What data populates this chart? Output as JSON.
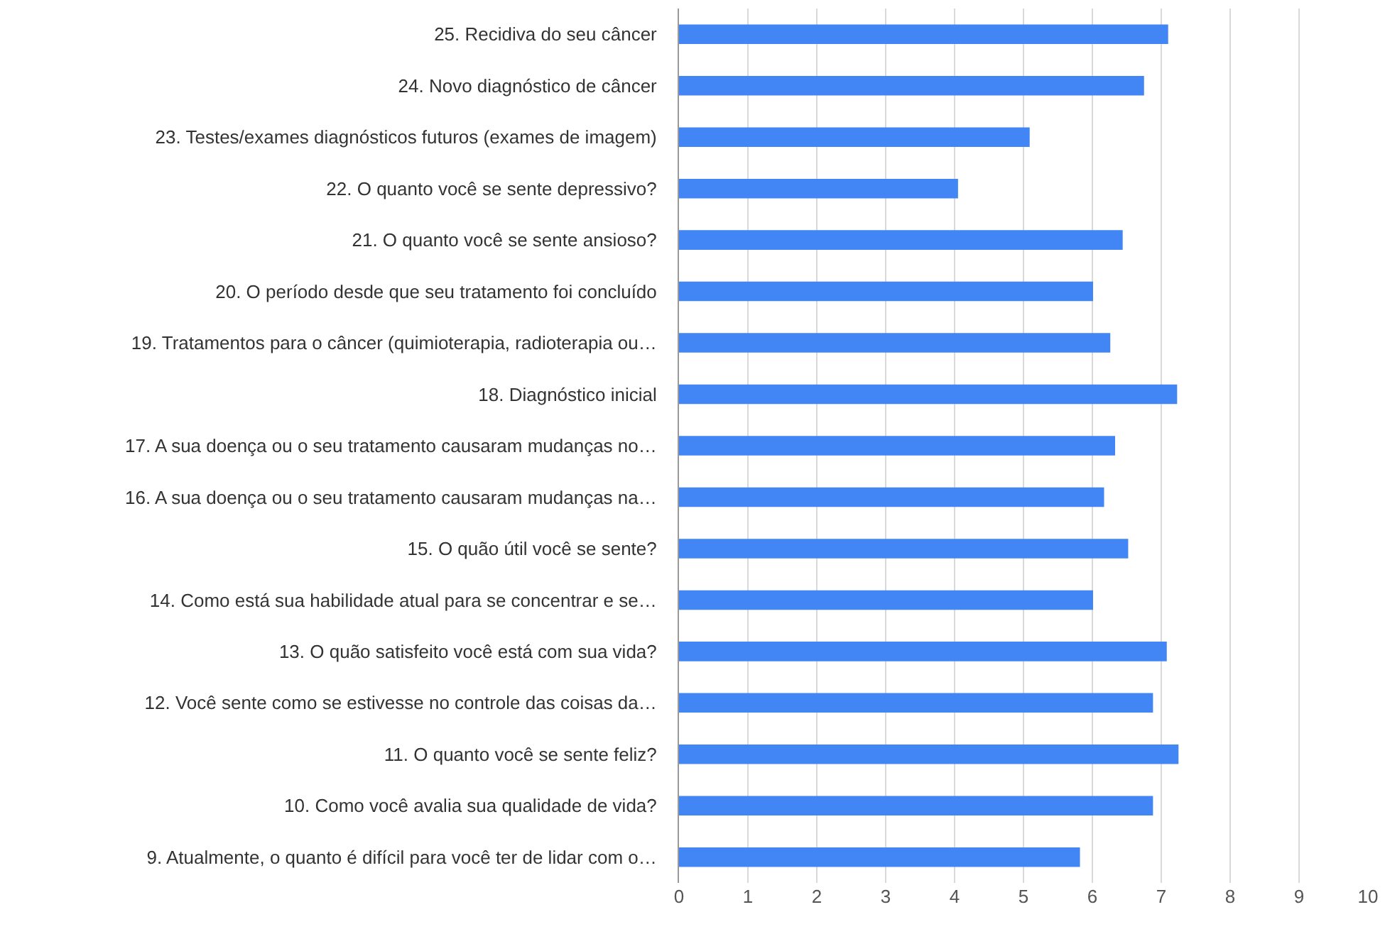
{
  "chart_data": {
    "type": "bar",
    "orientation": "horizontal",
    "categories": [
      "25. Recidiva do seu câncer",
      "24. Novo diagnóstico de câncer",
      "23. Testes/exames diagnósticos futuros (exames de imagem)",
      "22. O quanto você se sente depressivo?",
      "21. O quanto você se sente ansioso?",
      "20. O período desde que seu tratamento foi concluído",
      "19. Tratamentos para o câncer (quimioterapia, radioterapia ou…",
      "18. Diagnóstico inicial",
      "17. A sua doença ou o seu tratamento causaram mudanças no…",
      "16. A sua doença ou o seu tratamento causaram mudanças na…",
      "15. O quão útil você se sente?",
      "14. Como está sua habilidade atual para se concentrar e se…",
      "13. O quão satisfeito você está com sua vida?",
      "12. Você sente como se estivesse no controle das coisas da…",
      "11. O quanto você se sente feliz?",
      "10. Como você avalia sua qualidade de vida?",
      "9. Atualmente, o quanto é difícil para você ter de lidar com o…"
    ],
    "values": [
      7.1,
      6.75,
      5.09,
      4.05,
      6.44,
      6.01,
      6.26,
      7.23,
      6.33,
      6.17,
      6.52,
      6.01,
      7.08,
      6.88,
      7.25,
      6.88,
      5.82
    ],
    "color": "#4285f4",
    "xlim": [
      0,
      10
    ],
    "xticks": [
      0,
      1,
      2,
      3,
      4,
      5,
      6,
      7,
      8,
      9,
      10
    ],
    "grid": "x"
  }
}
